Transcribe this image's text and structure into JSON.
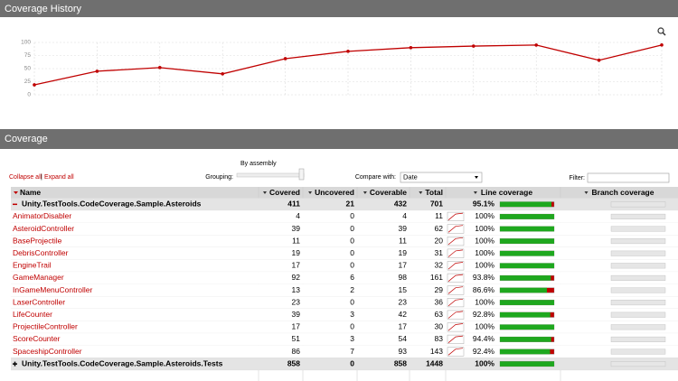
{
  "header": {
    "title": "Coverage History"
  },
  "chart_data": {
    "type": "line",
    "categories": [
      null,
      null,
      null,
      null,
      null,
      null,
      null,
      null,
      null,
      null,
      null
    ],
    "values": [
      19,
      45,
      52,
      40,
      69,
      83,
      90,
      93,
      95,
      66,
      95.1
    ],
    "color": "#c00000",
    "ylim": [
      0,
      100
    ],
    "yticks": [
      0,
      25,
      50,
      75,
      100
    ],
    "grid": true
  },
  "coverage": {
    "title": "Coverage",
    "collapse": "Collapse all",
    "separator": "|",
    "expand": "Expand all",
    "grouping_value": "By assembly",
    "grouping_label": "Grouping:",
    "compare_label": "Compare with:",
    "compare_value": "Date",
    "filter_label": "Filter:"
  },
  "table": {
    "columns": [
      "Name",
      "Covered",
      "Uncovered",
      "Coverable",
      "Total",
      "Line coverage",
      "Branch coverage"
    ],
    "assemblies": [
      {
        "name": "Unity.TestTools.CodeCoverage.Sample.Asteroids",
        "covered": 411,
        "uncovered": 21,
        "coverable": 432,
        "total": 701,
        "line_coverage": {
          "value": 95.1,
          "label": "95.1%"
        },
        "classes": [
          {
            "name": "AnimatorDisabler",
            "covered": 4,
            "uncovered": 0,
            "coverable": 4,
            "total": 11,
            "line_coverage": {
              "value": 100,
              "label": "100%"
            }
          },
          {
            "name": "AsteroidController",
            "covered": 39,
            "uncovered": 0,
            "coverable": 39,
            "total": 62,
            "line_coverage": {
              "value": 100,
              "label": "100%"
            }
          },
          {
            "name": "BaseProjectile",
            "covered": 11,
            "uncovered": 0,
            "coverable": 11,
            "total": 20,
            "line_coverage": {
              "value": 100,
              "label": "100%"
            }
          },
          {
            "name": "DebrisController",
            "covered": 19,
            "uncovered": 0,
            "coverable": 19,
            "total": 31,
            "line_coverage": {
              "value": 100,
              "label": "100%"
            }
          },
          {
            "name": "EngineTrail",
            "covered": 17,
            "uncovered": 0,
            "coverable": 17,
            "total": 32,
            "line_coverage": {
              "value": 100,
              "label": "100%"
            }
          },
          {
            "name": "GameManager",
            "covered": 92,
            "uncovered": 6,
            "coverable": 98,
            "total": 161,
            "line_coverage": {
              "value": 93.8,
              "label": "93.8%"
            }
          },
          {
            "name": "InGameMenuController",
            "covered": 13,
            "uncovered": 2,
            "coverable": 15,
            "total": 29,
            "line_coverage": {
              "value": 86.6,
              "label": "86.6%"
            }
          },
          {
            "name": "LaserController",
            "covered": 23,
            "uncovered": 0,
            "coverable": 23,
            "total": 36,
            "line_coverage": {
              "value": 100,
              "label": "100%"
            }
          },
          {
            "name": "LifeCounter",
            "covered": 39,
            "uncovered": 3,
            "coverable": 42,
            "total": 63,
            "line_coverage": {
              "value": 92.8,
              "label": "92.8%"
            }
          },
          {
            "name": "ProjectileController",
            "covered": 17,
            "uncovered": 0,
            "coverable": 17,
            "total": 30,
            "line_coverage": {
              "value": 100,
              "label": "100%"
            }
          },
          {
            "name": "ScoreCounter",
            "covered": 51,
            "uncovered": 3,
            "coverable": 54,
            "total": 83,
            "line_coverage": {
              "value": 94.4,
              "label": "94.4%"
            }
          },
          {
            "name": "SpaceshipController",
            "covered": 86,
            "uncovered": 7,
            "coverable": 93,
            "total": 143,
            "line_coverage": {
              "value": 92.4,
              "label": "92.4%"
            }
          }
        ]
      },
      {
        "name": "Unity.TestTools.CodeCoverage.Sample.Asteroids.Tests",
        "covered": 858,
        "uncovered": 0,
        "coverable": 858,
        "total": 1448,
        "line_coverage": {
          "value": 100,
          "label": "100%"
        },
        "classes": []
      }
    ]
  }
}
